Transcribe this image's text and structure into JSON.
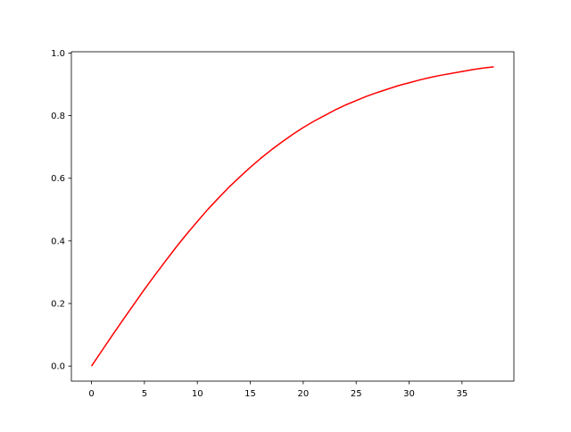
{
  "chart_data": {
    "type": "line",
    "title": "",
    "xlabel": "",
    "ylabel": "",
    "xlim": [
      -1.9,
      39.9
    ],
    "ylim": [
      -0.048,
      1.004
    ],
    "grid": false,
    "x_ticks": [
      "0",
      "5",
      "10",
      "15",
      "20",
      "25",
      "30",
      "35"
    ],
    "y_ticks": [
      "0.0",
      "0.2",
      "0.4",
      "0.6",
      "0.8",
      "1.0"
    ],
    "series": [
      {
        "color": "#ff0000",
        "x": [
          0,
          1,
          2,
          3,
          4,
          5,
          6,
          7,
          8,
          9,
          10,
          11,
          12,
          13,
          14,
          15,
          16,
          17,
          18,
          19,
          20,
          21,
          22,
          23,
          24,
          25,
          26,
          27,
          28,
          29,
          30,
          31,
          32,
          33,
          34,
          35,
          36,
          37,
          38
        ],
        "y": [
          0,
          0.05,
          0.1,
          0.149,
          0.197,
          0.245,
          0.291,
          0.336,
          0.38,
          0.422,
          0.462,
          0.501,
          0.537,
          0.572,
          0.604,
          0.635,
          0.664,
          0.691,
          0.716,
          0.74,
          0.762,
          0.782,
          0.8,
          0.818,
          0.834,
          0.848,
          0.862,
          0.874,
          0.885,
          0.896,
          0.905,
          0.914,
          0.922,
          0.929,
          0.935,
          0.941,
          0.947,
          0.952,
          0.956
        ]
      }
    ]
  }
}
